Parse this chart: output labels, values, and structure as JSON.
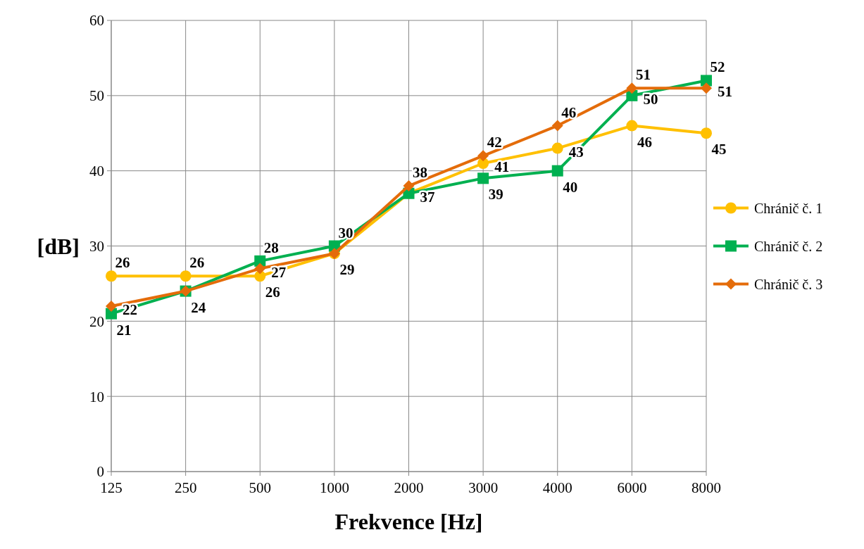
{
  "chart_data": {
    "type": "line",
    "categories": [
      "125",
      "250",
      "500",
      "1000",
      "2000",
      "3000",
      "4000",
      "6000",
      "8000"
    ],
    "xlabel": "Frekvence [Hz]",
    "ylabel": "[dB]",
    "ylim": [
      0,
      60
    ],
    "yticks": [
      0,
      10,
      20,
      30,
      40,
      50,
      60
    ],
    "grid": true,
    "legend": "right",
    "series": [
      {
        "name": "Chránič č. 1",
        "color": "#ffc000",
        "marker": "circle",
        "values": [
          26,
          26,
          26,
          29,
          37,
          41,
          43,
          46,
          45
        ],
        "value_labels": [
          "26",
          "26",
          "26",
          "29",
          null,
          "41",
          "43",
          "46",
          "45"
        ]
      },
      {
        "name": "Chránič č. 2",
        "color": "#00b050",
        "marker": "square",
        "values": [
          21,
          24,
          28,
          30,
          37,
          39,
          40,
          50,
          52
        ],
        "value_labels": [
          "21",
          "24",
          "28",
          "30",
          "37",
          "39",
          "40",
          "50",
          "52"
        ]
      },
      {
        "name": "Chránič č. 3",
        "color": "#e46c0a",
        "marker": "diamond",
        "values": [
          22,
          24,
          27,
          29,
          38,
          42,
          46,
          51,
          51
        ],
        "value_labels": [
          "22",
          null,
          "27",
          null,
          "38",
          "42",
          "46",
          "51",
          "51"
        ]
      }
    ]
  }
}
